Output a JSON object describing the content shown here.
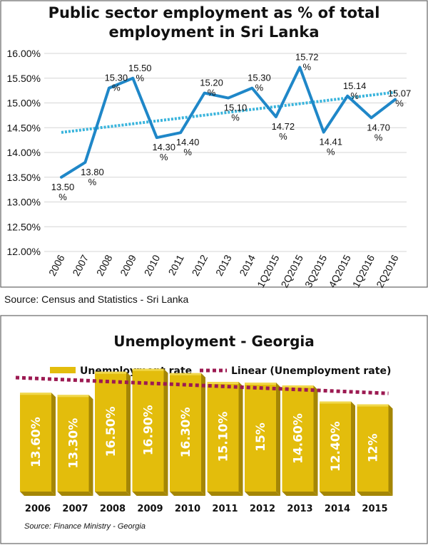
{
  "colors": {
    "line": "#1f87c8",
    "trend_top": "#39b4dc",
    "bar_front": "#e3bd0c",
    "bar_top": "#f1d84c",
    "bar_side": "#a48605",
    "trend_bottom": "#9c1a52"
  },
  "chart_data": [
    {
      "type": "line",
      "title_line1": "Public sector employment as % of total",
      "title_line2": "employment in Sri Lanka",
      "categories": [
        "2006",
        "2007",
        "2008",
        "2009",
        "2010",
        "2011",
        "2012",
        "2013",
        "2014",
        "1Q2015",
        "2Q2015",
        "3Q2015",
        "4Q2015",
        "1Q2016",
        "2Q2016"
      ],
      "values": [
        13.5,
        13.8,
        15.3,
        15.5,
        14.3,
        14.4,
        15.2,
        15.1,
        15.3,
        14.72,
        15.72,
        14.41,
        15.14,
        14.7,
        15.07
      ],
      "data_labels": [
        {
          "value": "13.50",
          "unit": "%"
        },
        {
          "value": "13.80",
          "unit": "%"
        },
        {
          "value": "15.30",
          "unit": "%"
        },
        {
          "value": "15.50",
          "unit": "%"
        },
        {
          "value": "14.30",
          "unit": "%"
        },
        {
          "value": "14.40",
          "unit": "%"
        },
        {
          "value": "15.20",
          "unit": "%"
        },
        {
          "value": "15.10",
          "unit": "%"
        },
        {
          "value": "15.30",
          "unit": "%"
        },
        {
          "value": "14.72",
          "unit": "%"
        },
        {
          "value": "15.72",
          "unit": "%"
        },
        {
          "value": "14.41",
          "unit": "%"
        },
        {
          "value": "15.14",
          "unit": "%"
        },
        {
          "value": "14.70",
          "unit": "%"
        },
        {
          "value": "15.07",
          "unit": "%"
        }
      ],
      "ylim": [
        12.0,
        16.0
      ],
      "yticks": [
        "12.00%",
        "12.50%",
        "13.00%",
        "13.50%",
        "14.00%",
        "14.50%",
        "15.00%",
        "15.50%",
        "16.00%"
      ],
      "grid": true,
      "trendline": {
        "type": "linear",
        "style": "dotted"
      },
      "source": "Source: Census and Statistics - Sri Lanka"
    },
    {
      "type": "bar",
      "title": "Unemployment - Georgia",
      "categories": [
        "2006",
        "2007",
        "2008",
        "2009",
        "2010",
        "2011",
        "2012",
        "2013",
        "2014",
        "2015"
      ],
      "values": [
        13.6,
        13.3,
        16.5,
        16.9,
        16.3,
        15.1,
        15.0,
        14.6,
        12.4,
        12.0
      ],
      "data_labels": [
        "13.60%",
        "13.30%",
        "16.50%",
        "16.90%",
        "16.30%",
        "15.10%",
        "15%",
        "14.60%",
        "12.40%",
        "12%"
      ],
      "legend": [
        {
          "name": "Unemployment rate",
          "style": "bar"
        },
        {
          "name": "Linear (Unemployment rate)",
          "style": "dotted-line"
        }
      ],
      "legend_position": "top",
      "trendline": {
        "type": "linear",
        "style": "dotted"
      },
      "source": "Source: Finance Ministry - Georgia"
    }
  ]
}
